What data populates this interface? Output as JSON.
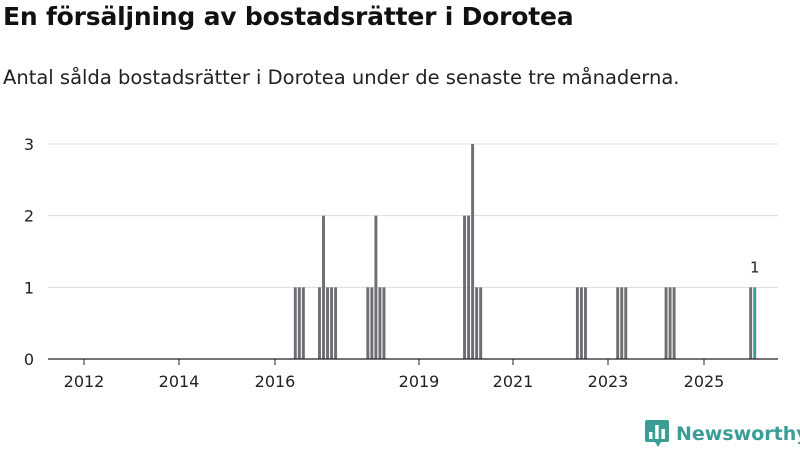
{
  "header": {
    "title": "En försäljning av bostadsrätter i Dorotea",
    "subtitle": "Antal sålda bostadsrätter i Dorotea under de senaste tre månaderna."
  },
  "brand": {
    "name": "Newsworthy",
    "color": "#3a9e97",
    "icon": "bar-chart-speech-icon"
  },
  "chart_data": {
    "type": "bar",
    "title": "",
    "xlabel": "",
    "ylabel": "",
    "x_ticks": [
      "2012",
      "2014",
      "2016",
      "2019",
      "2021",
      "2023",
      "2025"
    ],
    "y_ticks": [
      0,
      1,
      2,
      3
    ],
    "ylim": [
      0,
      3
    ],
    "grid": true,
    "bar_color": "#6f6e73",
    "highlight_color": "#3a9e97",
    "series": [
      {
        "values": [
          {
            "month": "2016-07",
            "value": 1
          },
          {
            "month": "2016-08",
            "value": 1
          },
          {
            "month": "2016-09",
            "value": 1
          },
          {
            "month": "2017-01",
            "value": 1
          },
          {
            "month": "2017-02",
            "value": 2
          },
          {
            "month": "2017-03",
            "value": 1
          },
          {
            "month": "2017-04",
            "value": 1
          },
          {
            "month": "2017-05",
            "value": 1
          },
          {
            "month": "2018-01",
            "value": 1
          },
          {
            "month": "2018-02",
            "value": 1
          },
          {
            "month": "2018-03",
            "value": 2
          },
          {
            "month": "2018-04",
            "value": 1
          },
          {
            "month": "2018-05",
            "value": 1
          },
          {
            "month": "2020-01",
            "value": 2
          },
          {
            "month": "2020-02",
            "value": 2
          },
          {
            "month": "2020-03",
            "value": 3
          },
          {
            "month": "2020-04",
            "value": 1
          },
          {
            "month": "2020-05",
            "value": 1
          },
          {
            "month": "2022-05",
            "value": 1
          },
          {
            "month": "2022-06",
            "value": 1
          },
          {
            "month": "2022-07",
            "value": 1
          },
          {
            "month": "2023-03",
            "value": 1
          },
          {
            "month": "2023-04",
            "value": 1
          },
          {
            "month": "2023-05",
            "value": 1
          },
          {
            "month": "2024-03",
            "value": 1
          },
          {
            "month": "2024-04",
            "value": 1
          },
          {
            "month": "2024-05",
            "value": 1
          },
          {
            "month": "2025-12",
            "value": 1
          },
          {
            "month": "2026-01",
            "value": 1,
            "highlight": true,
            "label": "1"
          }
        ]
      }
    ]
  }
}
